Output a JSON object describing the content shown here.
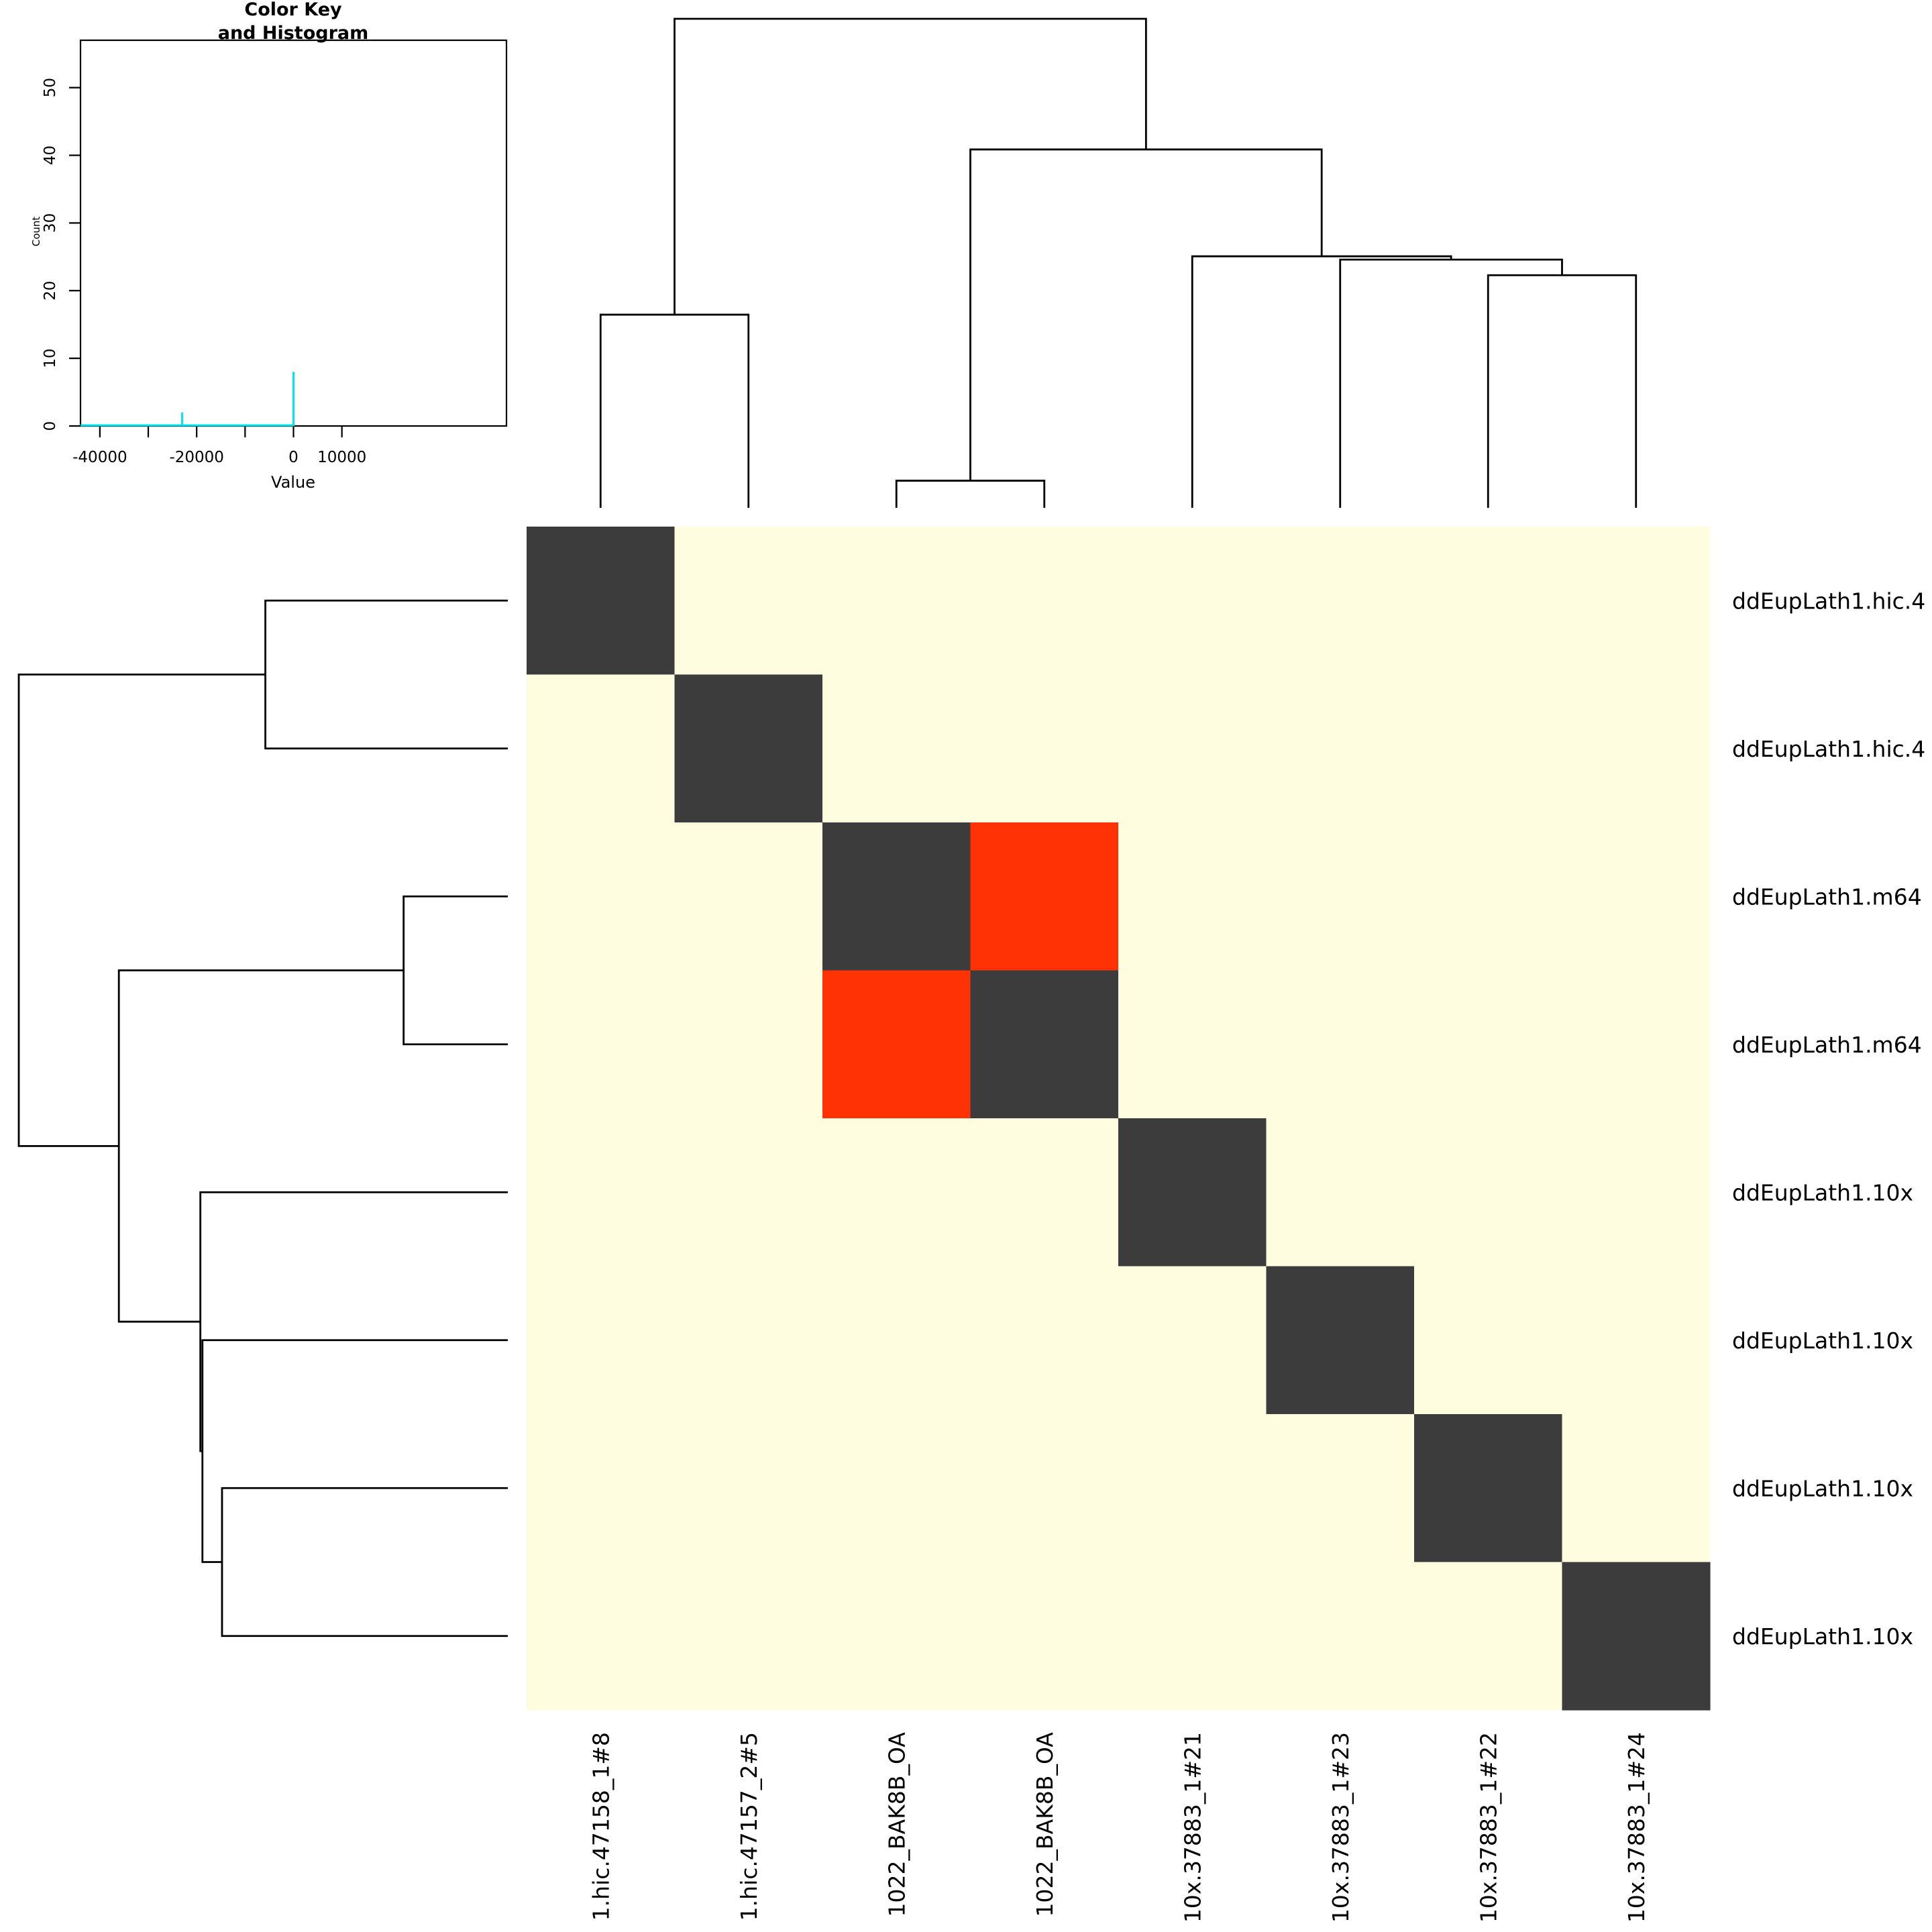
{
  "chart_data": {
    "type": "heatmap",
    "title": "",
    "rows": [
      "ddEupLath1.hic.4",
      "ddEupLath1.hic.4",
      "ddEupLath1.m64",
      "ddEupLath1.m64",
      "ddEupLath1.10x",
      "ddEupLath1.10x",
      "ddEupLath1.10x",
      "ddEupLath1.10x"
    ],
    "columns": [
      "1.hic.47158_1#8",
      "1.hic.47157_2#5",
      "1022_BAK8B_OA",
      "1022_BAK8B_OA",
      "10x.37883_1#21",
      "10x.37883_1#23",
      "10x.37883_1#22",
      "10x.37883_1#24"
    ],
    "values": [
      [
        0,
        -45000,
        -45000,
        -45000,
        -45000,
        -45000,
        -45000,
        -45000
      ],
      [
        -45000,
        0,
        -45000,
        -45000,
        -45000,
        -45000,
        -45000,
        -45000
      ],
      [
        -45000,
        -45000,
        0,
        -23000,
        -45000,
        -45000,
        -45000,
        -45000
      ],
      [
        -45000,
        -45000,
        -23000,
        0,
        -45000,
        -45000,
        -45000,
        -45000
      ],
      [
        -45000,
        -45000,
        -45000,
        -45000,
        0,
        -45000,
        -45000,
        -45000
      ],
      [
        -45000,
        -45000,
        -45000,
        -45000,
        -45000,
        0,
        -45000,
        -45000
      ],
      [
        -45000,
        -45000,
        -45000,
        -45000,
        -45000,
        -45000,
        0,
        -45000
      ],
      [
        -45000,
        -45000,
        -45000,
        -45000,
        -45000,
        -45000,
        -45000,
        0
      ]
    ],
    "colors": {
      "low": "#fffde0",
      "mid": "#ff2d00",
      "high": "#3c3c3c",
      "histogram": "#00e5ee"
    },
    "column_dendrogram_merges": [
      {
        "left": [
          0
        ],
        "right": [
          1
        ],
        "height": 23.5
      },
      {
        "left": [
          2
        ],
        "right": [
          3
        ],
        "height": 3.3
      },
      {
        "left": [
          6
        ],
        "right": [
          7
        ],
        "height": 28.3
      },
      {
        "left": [
          5
        ],
        "right": [
          6,
          7
        ],
        "height": 30.2
      },
      {
        "left": [
          4
        ],
        "right": [
          5,
          6,
          7
        ],
        "height": 30.6
      },
      {
        "left": [
          2,
          3
        ],
        "right": [
          4,
          5,
          6,
          7
        ],
        "height": 43.6
      },
      {
        "left": [
          0,
          1
        ],
        "right": [
          2,
          3,
          4,
          5,
          6,
          7
        ],
        "height": 59.5
      }
    ],
    "row_dendrogram_merges": [
      {
        "left": [
          0
        ],
        "right": [
          1
        ],
        "height": 23.5
      },
      {
        "left": [
          2
        ],
        "right": [
          3
        ],
        "height": 10.1
      },
      {
        "left": [
          6
        ],
        "right": [
          7
        ],
        "height": 27.7
      },
      {
        "left": [
          5
        ],
        "right": [
          6,
          7
        ],
        "height": 29.6
      },
      {
        "left": [
          4
        ],
        "right": [
          5,
          6,
          7
        ],
        "height": 29.8
      },
      {
        "left": [
          2,
          3
        ],
        "right": [
          4,
          5,
          6,
          7
        ],
        "height": 37.7
      },
      {
        "left": [
          0,
          1
        ],
        "right": [
          2,
          3,
          4,
          5,
          6,
          7
        ],
        "height": 47.4
      }
    ],
    "color_key": {
      "title_line1": "Color Key",
      "title_line2": "and Histogram",
      "xlabel": "Value",
      "ylabel": "Count",
      "xticks": [
        "-40000",
        "-20000",
        "0",
        "10000"
      ],
      "xtick_values": [
        -40000,
        -30000,
        -20000,
        -10000,
        0,
        10000
      ],
      "yticks": [
        "0",
        "10",
        "20",
        "30",
        "40",
        "50"
      ],
      "xlim": [
        -44000,
        44000
      ],
      "ylim": [
        0,
        57
      ],
      "histogram": [
        {
          "x": -23000,
          "count": 2
        },
        {
          "x": 0,
          "count": 8
        }
      ]
    }
  }
}
